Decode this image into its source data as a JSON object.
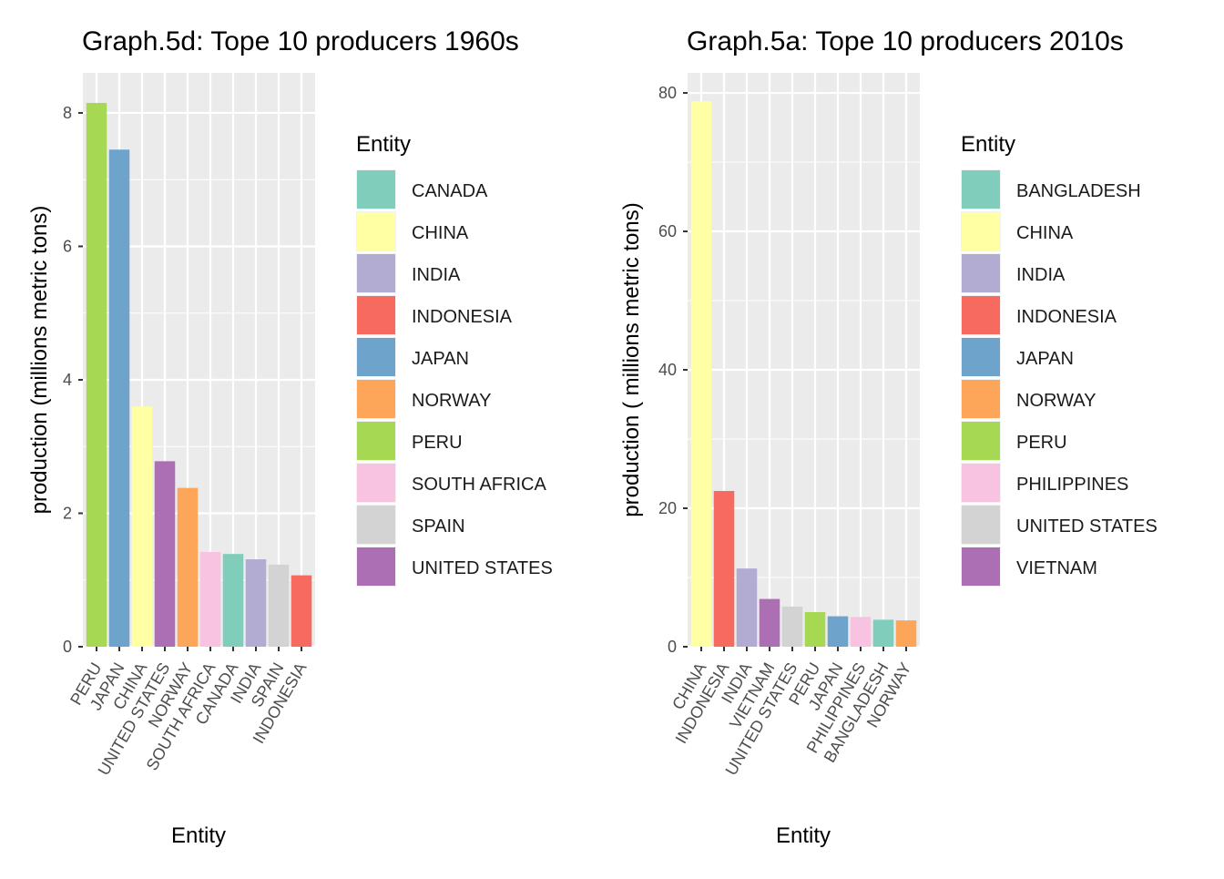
{
  "chart_data": [
    {
      "type": "bar",
      "title": "Graph.5d: Tope 10 producers 1960s",
      "xlabel": "Entity",
      "ylabel": "production (millions metric tons)",
      "ylim": [
        0,
        8.6
      ],
      "y_ticks": [
        0,
        2,
        4,
        6,
        8
      ],
      "grid": true,
      "legend_position": "right",
      "legend_title": "Entity",
      "categories": [
        "PERU",
        "JAPAN",
        "CHINA",
        "UNITED STATES",
        "NORWAY",
        "SOUTH AFRICA",
        "CANADA",
        "INDIA",
        "SPAIN",
        "INDONESIA"
      ],
      "values": [
        8.15,
        7.45,
        3.6,
        2.78,
        2.38,
        1.42,
        1.39,
        1.31,
        1.23,
        1.07
      ],
      "bar_colors": [
        "#a6d854",
        "#6ea3cc",
        "#ffffa3",
        "#ad6fb3",
        "#fda65a",
        "#f8c3e1",
        "#80cdbb",
        "#b2abd2",
        "#d3d3d3",
        "#f76a60"
      ],
      "legend": [
        {
          "label": "CANADA",
          "color": "#80cdbb"
        },
        {
          "label": "CHINA",
          "color": "#ffffa3"
        },
        {
          "label": "INDIA",
          "color": "#b2abd2"
        },
        {
          "label": "INDONESIA",
          "color": "#f76a60"
        },
        {
          "label": "JAPAN",
          "color": "#6ea3cc"
        },
        {
          "label": "NORWAY",
          "color": "#fda65a"
        },
        {
          "label": "PERU",
          "color": "#a6d854"
        },
        {
          "label": "SOUTH AFRICA",
          "color": "#f8c3e1"
        },
        {
          "label": "SPAIN",
          "color": "#d3d3d3"
        },
        {
          "label": "UNITED STATES",
          "color": "#ad6fb3"
        }
      ]
    },
    {
      "type": "bar",
      "title": "Graph.5a: Tope 10 producers 2010s",
      "xlabel": "Entity",
      "ylabel": "production ( millions metric tons)",
      "ylim": [
        0,
        82.9
      ],
      "y_ticks": [
        0,
        20,
        40,
        60,
        80
      ],
      "grid": true,
      "legend_position": "right",
      "legend_title": "Entity",
      "categories": [
        "CHINA",
        "INDONESIA",
        "INDIA",
        "VIETNAM",
        "UNITED STATES",
        "PERU",
        "JAPAN",
        "PHILIPPINES",
        "BANGLADESH",
        "NORWAY"
      ],
      "values": [
        78.8,
        22.5,
        11.3,
        6.9,
        5.8,
        5.0,
        4.4,
        4.3,
        3.9,
        3.8
      ],
      "bar_colors": [
        "#ffffa3",
        "#f76a60",
        "#b2abd2",
        "#ad6fb3",
        "#d3d3d3",
        "#a6d854",
        "#6ea3cc",
        "#f8c3e1",
        "#80cdbb",
        "#fda65a"
      ],
      "legend": [
        {
          "label": "BANGLADESH",
          "color": "#80cdbb"
        },
        {
          "label": "CHINA",
          "color": "#ffffa3"
        },
        {
          "label": "INDIA",
          "color": "#b2abd2"
        },
        {
          "label": "INDONESIA",
          "color": "#f76a60"
        },
        {
          "label": "JAPAN",
          "color": "#6ea3cc"
        },
        {
          "label": "NORWAY",
          "color": "#fda65a"
        },
        {
          "label": "PERU",
          "color": "#a6d854"
        },
        {
          "label": "PHILIPPINES",
          "color": "#f8c3e1"
        },
        {
          "label": "UNITED STATES",
          "color": "#d3d3d3"
        },
        {
          "label": "VIETNAM",
          "color": "#ad6fb3"
        }
      ]
    }
  ]
}
